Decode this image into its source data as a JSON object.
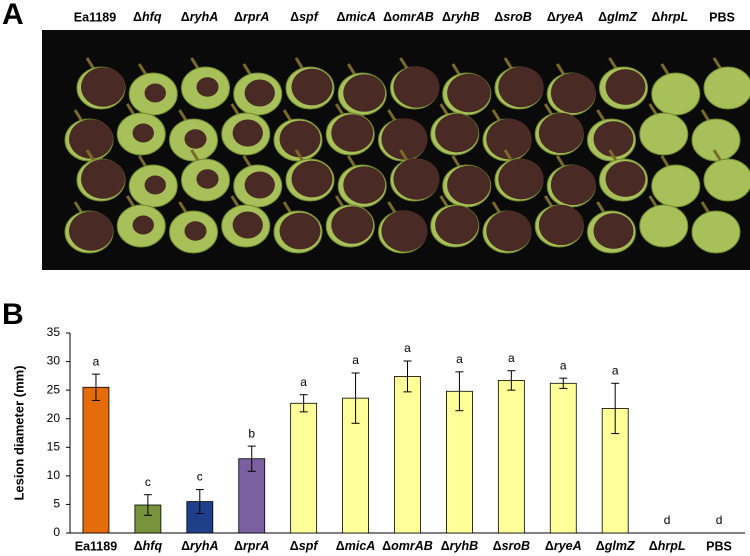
{
  "chart_data": {
    "type": "bar",
    "panel_labels": [
      "A",
      "B"
    ],
    "ylabel": "Lesion diameter (mm)",
    "categories": [
      "Ea1189",
      "Δhfq",
      "ΔryhA",
      "ΔrprA",
      "Δspf",
      "ΔmicA",
      "ΔomrAB",
      "ΔryhB",
      "ΔsroB",
      "ΔryeA",
      "ΔglmZ",
      "ΔhrpL",
      "PBS"
    ],
    "values": [
      25.5,
      4.9,
      5.5,
      13.0,
      22.7,
      23.6,
      27.4,
      24.8,
      26.7,
      26.2,
      21.8,
      0,
      0
    ],
    "errors": [
      2.3,
      1.8,
      2.1,
      2.2,
      1.5,
      4.4,
      2.7,
      3.4,
      1.7,
      0.9,
      4.4,
      0,
      0
    ],
    "annotations": [
      "a",
      "c",
      "c",
      "b",
      "a",
      "a",
      "a",
      "a",
      "a",
      "a",
      "a",
      "d",
      "d"
    ],
    "colors": [
      "#e46c0a",
      "#77933c",
      "#1f3f8a",
      "#7b5fa0",
      "#ffff99",
      "#ffff99",
      "#ffff99",
      "#ffff99",
      "#ffff99",
      "#ffff99",
      "#ffff99",
      "#ffff99",
      "#ffff99"
    ],
    "ylim": [
      0,
      35
    ],
    "yticks": [
      0,
      5,
      10,
      15,
      20,
      25,
      30,
      35
    ]
  }
}
